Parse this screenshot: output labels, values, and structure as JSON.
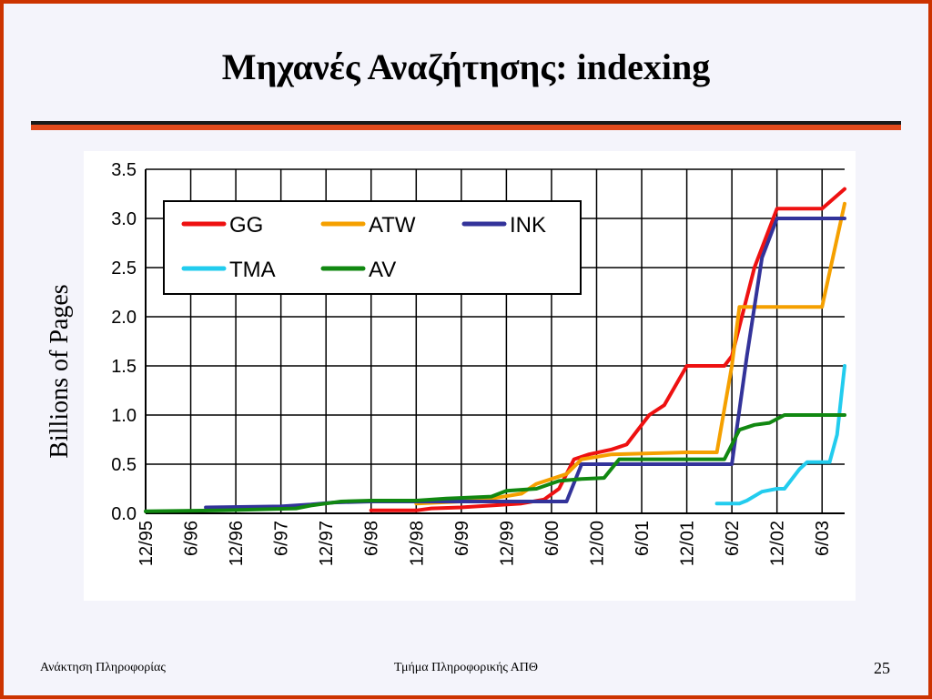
{
  "slide": {
    "title": "Μηχανές Αναζήτησης: indexing",
    "footer_left": "Ανάκτηση Πληροφορίας",
    "footer_center": "Τμήμα Πληροφορικής ΑΠΘ",
    "page_number": "25"
  },
  "colors": {
    "frame": "#cc3300",
    "rule_red": "#e34a1c",
    "GG": "#ee1111",
    "ATW": "#f5a000",
    "INK": "#33339a",
    "TMA": "#22ccee",
    "AV": "#118811"
  },
  "chart_data": {
    "type": "line",
    "title": "",
    "xlabel": "",
    "ylabel": "Billions of Pages",
    "ylim": [
      0,
      3.5
    ],
    "yticks": [
      "0.0",
      "0.5",
      "1.0",
      "1.5",
      "2.0",
      "2.5",
      "3.0",
      "3.5"
    ],
    "x_unit": "months since 12/95",
    "xlim": [
      0,
      93
    ],
    "xticks": [
      {
        "x": 0,
        "label": "12/95"
      },
      {
        "x": 6,
        "label": "6/96"
      },
      {
        "x": 12,
        "label": "12/96"
      },
      {
        "x": 18,
        "label": "6/97"
      },
      {
        "x": 24,
        "label": "12/97"
      },
      {
        "x": 30,
        "label": "6/98"
      },
      {
        "x": 36,
        "label": "12/98"
      },
      {
        "x": 42,
        "label": "6/99"
      },
      {
        "x": 48,
        "label": "12/99"
      },
      {
        "x": 54,
        "label": "6/00"
      },
      {
        "x": 60,
        "label": "12/00"
      },
      {
        "x": 66,
        "label": "6/01"
      },
      {
        "x": 72,
        "label": "12/01"
      },
      {
        "x": 78,
        "label": "6/02"
      },
      {
        "x": 84,
        "label": "12/02"
      },
      {
        "x": 90,
        "label": "6/03"
      }
    ],
    "grid": true,
    "legend": "top-left",
    "series": [
      {
        "name": "GG",
        "points": [
          [
            30,
            0.03
          ],
          [
            36,
            0.03
          ],
          [
            38,
            0.05
          ],
          [
            42,
            0.06
          ],
          [
            46,
            0.08
          ],
          [
            50,
            0.1
          ],
          [
            53,
            0.14
          ],
          [
            55,
            0.25
          ],
          [
            57,
            0.55
          ],
          [
            59,
            0.6
          ],
          [
            62,
            0.65
          ],
          [
            64,
            0.7
          ],
          [
            67,
            1.0
          ],
          [
            69,
            1.1
          ],
          [
            72,
            1.5
          ],
          [
            77,
            1.5
          ],
          [
            78,
            1.6
          ],
          [
            79,
            1.9
          ],
          [
            81,
            2.5
          ],
          [
            84,
            3.1
          ],
          [
            90,
            3.1
          ],
          [
            93,
            3.3
          ]
        ]
      },
      {
        "name": "ATW",
        "points": [
          [
            36,
            0.1
          ],
          [
            42,
            0.12
          ],
          [
            46,
            0.15
          ],
          [
            50,
            0.2
          ],
          [
            52,
            0.3
          ],
          [
            56,
            0.4
          ],
          [
            58,
            0.55
          ],
          [
            62,
            0.6
          ],
          [
            72,
            0.62
          ],
          [
            76,
            0.62
          ],
          [
            78,
            1.5
          ],
          [
            79,
            2.1
          ],
          [
            90,
            2.1
          ],
          [
            93,
            3.15
          ]
        ]
      },
      {
        "name": "INK",
        "points": [
          [
            8,
            0.06
          ],
          [
            18,
            0.07
          ],
          [
            22,
            0.09
          ],
          [
            25,
            0.11
          ],
          [
            30,
            0.12
          ],
          [
            36,
            0.12
          ],
          [
            54,
            0.12
          ],
          [
            56,
            0.12
          ],
          [
            58,
            0.5
          ],
          [
            61,
            0.5
          ],
          [
            77,
            0.5
          ],
          [
            78,
            0.5
          ],
          [
            80,
            1.6
          ],
          [
            82,
            2.6
          ],
          [
            84,
            3.0
          ],
          [
            93,
            3.0
          ]
        ]
      },
      {
        "name": "TMA",
        "points": [
          [
            76,
            0.1
          ],
          [
            79,
            0.1
          ],
          [
            80,
            0.13
          ],
          [
            82,
            0.22
          ],
          [
            84,
            0.25
          ],
          [
            85,
            0.25
          ],
          [
            87,
            0.45
          ],
          [
            88,
            0.52
          ],
          [
            91,
            0.52
          ],
          [
            92,
            0.8
          ],
          [
            93,
            1.5
          ]
        ]
      },
      {
        "name": "AV",
        "points": [
          [
            0,
            0.02
          ],
          [
            10,
            0.03
          ],
          [
            20,
            0.05
          ],
          [
            22,
            0.08
          ],
          [
            24,
            0.1
          ],
          [
            26,
            0.12
          ],
          [
            30,
            0.13
          ],
          [
            36,
            0.13
          ],
          [
            40,
            0.15
          ],
          [
            46,
            0.17
          ],
          [
            48,
            0.23
          ],
          [
            52,
            0.25
          ],
          [
            55,
            0.33
          ],
          [
            58,
            0.35
          ],
          [
            61,
            0.36
          ],
          [
            63,
            0.55
          ],
          [
            77,
            0.55
          ],
          [
            79,
            0.85
          ],
          [
            81,
            0.9
          ],
          [
            83,
            0.92
          ],
          [
            85,
            1.0
          ],
          [
            93,
            1.0
          ]
        ]
      }
    ]
  }
}
